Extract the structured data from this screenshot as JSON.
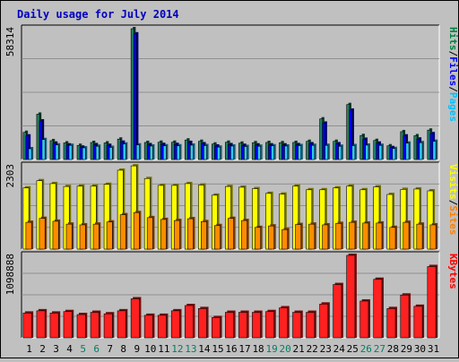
{
  "chart_data": {
    "type": "bar",
    "title": "Daily usage for July 2014",
    "categories": [
      "1",
      "2",
      "3",
      "4",
      "5",
      "6",
      "7",
      "8",
      "9",
      "10",
      "11",
      "12",
      "13",
      "14",
      "15",
      "16",
      "17",
      "18",
      "19",
      "20",
      "21",
      "22",
      "23",
      "24",
      "25",
      "26",
      "27",
      "28",
      "29",
      "30",
      "31"
    ],
    "weekend_categories": [
      "5",
      "6",
      "12",
      "13",
      "19",
      "20",
      "26",
      "27"
    ],
    "panels": [
      {
        "id": "hits",
        "max_label": "58314",
        "ylim": [
          0,
          58314
        ],
        "legend": [
          {
            "label": "Pages",
            "color": "#00c0ff"
          },
          {
            "label": "/",
            "color": "#000000"
          },
          {
            "label": "Files",
            "color": "#0000ff"
          },
          {
            "label": "/",
            "color": "#000000"
          },
          {
            "label": "Hits",
            "color": "#008040"
          }
        ],
        "series": [
          {
            "name": "Hits",
            "color": "#208060",
            "values": [
              12100,
              20200,
              8400,
              7400,
              6300,
              7600,
              7400,
              9100,
              58314,
              7600,
              7700,
              7700,
              8700,
              8100,
              6900,
              7700,
              7300,
              7500,
              7600,
              7500,
              7600,
              8100,
              18100,
              8100,
              24500,
              10700,
              8500,
              6100,
              12400,
              10600,
              13100
            ]
          },
          {
            "name": "Files",
            "color": "#0000f0",
            "values": [
              10500,
              17200,
              7300,
              6500,
              5500,
              6600,
              6300,
              7700,
              56000,
              6600,
              6700,
              6700,
              7600,
              7000,
              6000,
              6600,
              6300,
              6500,
              6500,
              6500,
              6600,
              7000,
              16200,
              7000,
              22000,
              9000,
              7300,
              5300,
              10500,
              9100,
              11500
            ]
          },
          {
            "name": "Pages",
            "color": "#30c8f8",
            "values": [
              4800,
              8900,
              6500,
              6300,
              5200,
              5900,
              5400,
              6900,
              6500,
              6000,
              6100,
              6100,
              6400,
              6200,
              5500,
              6000,
              5800,
              5900,
              6100,
              6000,
              6200,
              6300,
              6300,
              5900,
              6200,
              6400,
              6300,
              4900,
              7300,
              7500,
              8100
            ]
          }
        ]
      },
      {
        "id": "visits",
        "max_label": "2303",
        "ylim": [
          0,
          2303
        ],
        "legend": [
          {
            "label": "Sites",
            "color": "#ff8000"
          },
          {
            "label": "/",
            "color": "#000000"
          },
          {
            "label": "Visits",
            "color": "#ffff00"
          }
        ],
        "series": [
          {
            "name": "Visits",
            "color": "#ffff00",
            "values": [
              1690,
              1890,
              1810,
              1730,
              1740,
              1740,
              1790,
              2180,
              2300,
              1950,
              1760,
              1760,
              1810,
              1770,
              1490,
              1730,
              1710,
              1670,
              1540,
              1520,
              1740,
              1640,
              1640,
              1690,
              1740,
              1640,
              1720,
              1510,
              1650,
              1660,
              1610
            ]
          },
          {
            "name": "Sites",
            "color": "#ff8c00",
            "values": [
              740,
              850,
              770,
              690,
              670,
              690,
              750,
              950,
              1010,
              870,
              820,
              790,
              840,
              760,
              650,
              850,
              790,
              600,
              640,
              540,
              680,
              690,
              670,
              710,
              740,
              720,
              720,
              600,
              740,
              690,
              670
            ]
          }
        ]
      },
      {
        "id": "kbytes",
        "max_label": "1098888",
        "ylim": [
          0,
          1098888
        ],
        "legend": [
          {
            "label": "KBytes",
            "color": "#ff0000"
          }
        ],
        "series": [
          {
            "name": "KBytes",
            "color": "#ff2020",
            "values": [
              330000,
              360000,
              330000,
              350000,
              310000,
              340000,
              320000,
              360000,
              520000,
              300000,
              300000,
              360000,
              430000,
              390000,
              270000,
              340000,
              340000,
              340000,
              350000,
              400000,
              340000,
              340000,
              450000,
              710000,
              1098888,
              490000,
              780000,
              390000,
              570000,
              420000,
              950000
            ]
          }
        ]
      }
    ]
  }
}
